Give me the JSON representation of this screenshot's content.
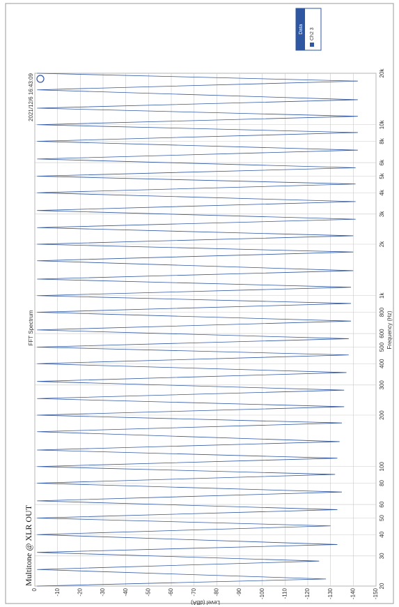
{
  "chart_data": {
    "type": "line",
    "title": "FFT Spectrum",
    "subtitle": "Multitone @ XLR OUT",
    "timestamp": "2021/12/6 16:43:09",
    "xlabel": "Frequency (Hz)",
    "ylabel": "Level (dBA)",
    "legend_title": "Data",
    "xlog": true,
    "grid": true,
    "xlim": [
      20,
      20000
    ],
    "ylim": [
      -150,
      0
    ],
    "xticks": [
      20,
      30,
      40,
      50,
      60,
      80,
      100,
      200,
      300,
      400,
      500,
      600,
      800,
      {
        "value": 1000,
        "label": "1k"
      },
      {
        "value": 2000,
        "label": "2k"
      },
      {
        "value": 3000,
        "label": "3k"
      },
      {
        "value": 4000,
        "label": "4k"
      },
      {
        "value": 5000,
        "label": "5k"
      },
      {
        "value": 6000,
        "label": "6k"
      },
      {
        "value": 8000,
        "label": "8k"
      },
      {
        "value": 10000,
        "label": "10k"
      },
      {
        "value": 20000,
        "label": "20k"
      }
    ],
    "yticks": [
      0,
      -10,
      -20,
      -30,
      -40,
      -50,
      -60,
      -70,
      -80,
      -90,
      -100,
      -110,
      -120,
      -130,
      -140,
      -150
    ],
    "series": [
      {
        "name": "Ch2 3",
        "color": "#2f56a0",
        "x": [
          20,
          22,
          25,
          28,
          31.5,
          35,
          40,
          45,
          50,
          56,
          63,
          71,
          80,
          90,
          100,
          112,
          125,
          140,
          160,
          180,
          200,
          224,
          250,
          280,
          315,
          355,
          400,
          450,
          500,
          560,
          630,
          710,
          800,
          900,
          1000,
          1120,
          1250,
          1400,
          1600,
          1800,
          2000,
          2240,
          2500,
          2800,
          3150,
          3550,
          4000,
          4500,
          5000,
          5600,
          6300,
          7100,
          8000,
          9000,
          10000,
          11200,
          12500,
          14000,
          16000,
          18000,
          20000
        ],
        "values": [
          -1,
          -128,
          -1,
          -125,
          -1,
          -133,
          -1,
          -130,
          -1,
          -133,
          -1,
          -135,
          -1,
          -132,
          -1,
          -133,
          -1,
          -134,
          -1,
          -135,
          -1,
          -136,
          -1,
          -136,
          -1,
          -137,
          -1,
          -138,
          -1,
          -138,
          -1,
          -139,
          -1,
          -139,
          -1,
          -139,
          -1,
          -140,
          -1,
          -140,
          -1,
          -140,
          -1,
          -141,
          -1,
          -141,
          -1,
          -141,
          -1,
          -141,
          -1,
          -142,
          -1,
          -142,
          -1,
          -142,
          -1,
          -142,
          -1,
          -142,
          -1
        ]
      }
    ]
  }
}
